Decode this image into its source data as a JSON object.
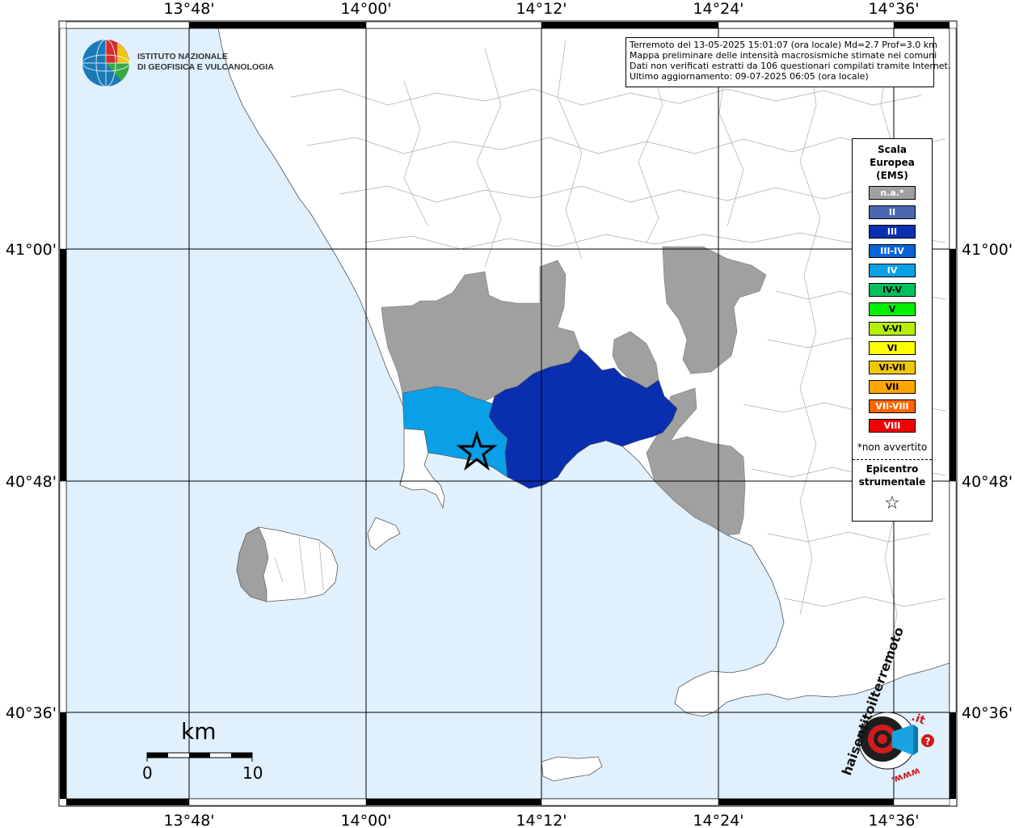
{
  "header": {
    "line1": "Terremoto del 13-05-2025 15:01:07 (ora locale) Md=2.7 Prof=3.0 km",
    "line2": "Mappa preliminare delle intensità macrosismiche stimate nei comuni",
    "line3": "Dati non verificati estratti da 106 questionari compilati tramite Internet.",
    "line4": "Ultimo aggiornamento: 09-07-2025 06:05 (ora locale)"
  },
  "institution": {
    "line1": "ISTITUTO NAZIONALE",
    "line2": "DI GEOFISICA E VULCANOLOGIA"
  },
  "axes": {
    "lon_labels": [
      "13°48'",
      "14°00'",
      "14°12'",
      "14°24'",
      "14°36'"
    ],
    "lat_labels": [
      "41°00'",
      "40°48'",
      "40°36'"
    ]
  },
  "legend": {
    "title_line1": "Scala",
    "title_line2": "Europea",
    "title_line3": "(EMS)",
    "items": [
      {
        "label": "n.a.*",
        "color": "#a0a0a0",
        "text_color": "#ffffff"
      },
      {
        "label": "II",
        "color": "#4a68b0",
        "text_color": "#ffffff"
      },
      {
        "label": "III",
        "color": "#0a2fb0",
        "text_color": "#ffffff"
      },
      {
        "label": "III-IV",
        "color": "#0a63d6",
        "text_color": "#ffffff"
      },
      {
        "label": "IV",
        "color": "#0aa0e6",
        "text_color": "#ffffff"
      },
      {
        "label": "IV-V",
        "color": "#00c060",
        "text_color": "#000000"
      },
      {
        "label": "V",
        "color": "#00f000",
        "text_color": "#000000"
      },
      {
        "label": "V-VI",
        "color": "#b4f000",
        "text_color": "#000000"
      },
      {
        "label": "VI",
        "color": "#ffff00",
        "text_color": "#000000"
      },
      {
        "label": "VI-VII",
        "color": "#f0c800",
        "text_color": "#000000"
      },
      {
        "label": "VII",
        "color": "#ffa500",
        "text_color": "#000000"
      },
      {
        "label": "VII-VIII",
        "color": "#ff6400",
        "text_color": "#ffffff"
      },
      {
        "label": "VIII",
        "color": "#f00000",
        "text_color": "#ffffff"
      }
    ],
    "note": "*non avvertito",
    "epicenter_line1": "Epicentro",
    "epicenter_line2": "strumentale",
    "epicenter_symbol": "☆"
  },
  "scale_bar": {
    "unit": "km",
    "start": "0",
    "end": "10"
  },
  "logo": {
    "text_main": "haisentitoilterremoto",
    "text_tld": ".it",
    "text_www": "www."
  },
  "colors": {
    "sea": "#e0f0fc",
    "land": "#ffffff",
    "not_felt": "#a0a0a0",
    "intensity_III": "#0a2fb0",
    "intensity_IV": "#0aa0e6"
  }
}
